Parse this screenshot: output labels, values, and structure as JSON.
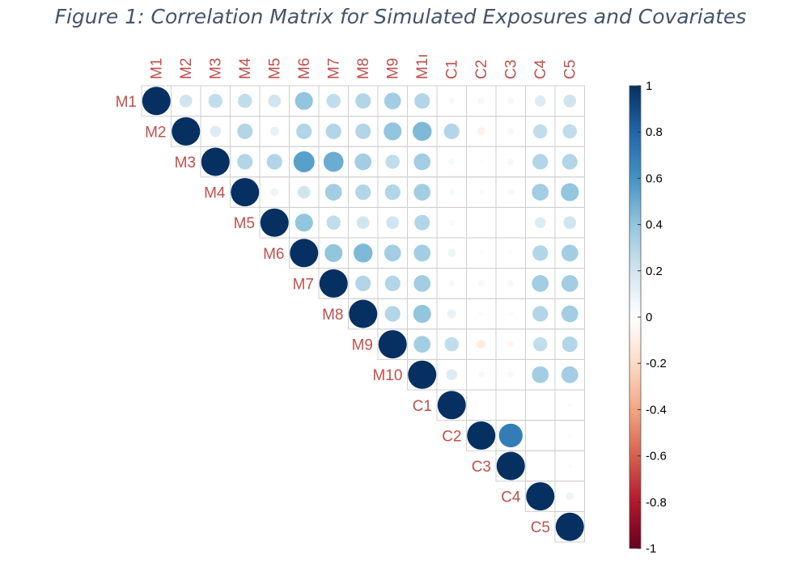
{
  "title": "Figure 1: Correlation Matrix for Simulated Exposures and Covariates",
  "chart_data": {
    "type": "heatmap",
    "subtype": "correlation-upper-triangle-circles",
    "variables": [
      "M1",
      "M2",
      "M3",
      "M4",
      "M5",
      "M6",
      "M7",
      "M8",
      "M9",
      "M10",
      "C1",
      "C2",
      "C3",
      "C4",
      "C5"
    ],
    "column_labels": [
      "M1",
      "M2",
      "M3",
      "M4",
      "M5",
      "M6",
      "M7",
      "M8",
      "M9",
      "M1ı",
      "C1",
      "C2",
      "C3",
      "C4",
      "C5"
    ],
    "row_labels": [
      "M1",
      "M2",
      "M3",
      "M4",
      "M5",
      "M6",
      "M7",
      "M8",
      "M9",
      "M10",
      "C1",
      "C2",
      "C3",
      "C4",
      "C5"
    ],
    "matrix": [
      [
        1,
        0.2,
        0.25,
        0.25,
        0.2,
        0.4,
        0.25,
        0.3,
        0.35,
        0.3,
        0.05,
        -0.05,
        -0.05,
        0.15,
        0.2
      ],
      [
        0.2,
        1,
        0.15,
        0.3,
        0.1,
        0.3,
        0.3,
        0.3,
        0.4,
        0.45,
        0.3,
        -0.08,
        -0.05,
        0.25,
        0.25
      ],
      [
        0.25,
        0.15,
        1,
        0.3,
        0.3,
        0.55,
        0.5,
        0.35,
        0.25,
        0.35,
        0.05,
        0.02,
        0.05,
        0.3,
        0.3
      ],
      [
        0.25,
        0.3,
        0.3,
        1,
        0.08,
        0.2,
        0.35,
        0.3,
        0.3,
        0.35,
        0.05,
        0.03,
        0.05,
        0.35,
        0.4
      ],
      [
        0.2,
        0.1,
        0.3,
        0.08,
        1,
        0.4,
        0.25,
        0.2,
        0.2,
        0.3,
        0.04,
        0,
        0,
        0.15,
        0.2
      ],
      [
        0.4,
        0.3,
        0.55,
        0.2,
        0.4,
        1,
        0.4,
        0.45,
        0.35,
        0.35,
        0.08,
        0.02,
        0.02,
        0.3,
        0.35
      ],
      [
        0.25,
        0.3,
        0.5,
        0.35,
        0.25,
        0.4,
        1,
        0.3,
        0.3,
        0.35,
        0.05,
        0.05,
        0.05,
        0.35,
        0.35
      ],
      [
        0.3,
        0.3,
        0.35,
        0.3,
        0.2,
        0.45,
        0.3,
        1,
        0.3,
        0.4,
        0.1,
        0.03,
        0.03,
        0.3,
        0.35
      ],
      [
        0.35,
        0.4,
        0.25,
        0.3,
        0.2,
        0.35,
        0.3,
        0.3,
        1,
        0.35,
        0.25,
        -0.1,
        -0.05,
        0.25,
        0.3
      ],
      [
        0.3,
        0.45,
        0.35,
        0.35,
        0.3,
        0.35,
        0.35,
        0.4,
        0.35,
        1,
        0.15,
        -0.05,
        -0.05,
        0.35,
        0.35
      ],
      [
        0.05,
        0.3,
        0.05,
        0.05,
        0.04,
        0.08,
        0.05,
        0.1,
        0.25,
        0.15,
        1,
        0,
        0,
        0,
        0.03
      ],
      [
        -0.05,
        -0.08,
        0.02,
        0.03,
        0,
        0.02,
        0.05,
        0.03,
        -0.1,
        -0.05,
        0,
        1,
        0.7,
        0,
        0.03
      ],
      [
        -0.05,
        -0.05,
        0.05,
        0.05,
        0,
        0.02,
        0.05,
        0.03,
        -0.05,
        -0.05,
        0,
        0.7,
        1,
        0,
        0.03
      ],
      [
        0.15,
        0.25,
        0.3,
        0.35,
        0.15,
        0.3,
        0.35,
        0.3,
        0.25,
        0.35,
        0,
        0,
        0,
        1,
        0.08
      ],
      [
        0.2,
        0.25,
        0.3,
        0.4,
        0.2,
        0.35,
        0.35,
        0.35,
        0.3,
        0.35,
        0.03,
        0.03,
        0.03,
        0.08,
        1
      ]
    ],
    "display": "upper-triangle including diagonal",
    "color_scale": {
      "min": -1,
      "max": 1,
      "ticks": [
        "1",
        "0.8",
        "0.6",
        "0.4",
        "0.2",
        "0",
        "-0.2",
        "-0.4",
        "-0.6",
        "-0.8",
        "-1"
      ],
      "colors": [
        "#67001f",
        "#b2182b",
        "#d6604d",
        "#f4a582",
        "#fddbc7",
        "#ffffff",
        "#d1e5f0",
        "#92c5de",
        "#4393c3",
        "#2166ac",
        "#053061"
      ]
    },
    "grid": true,
    "legend": "right colorbar"
  }
}
